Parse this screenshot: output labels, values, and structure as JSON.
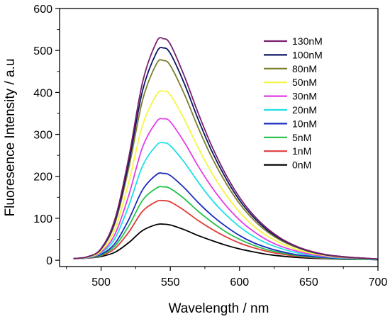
{
  "chart_data": {
    "type": "line",
    "xlabel": "Wavelength / nm",
    "ylabel": "Fluoresence Intensity / a.u",
    "xlim": [
      470,
      700
    ],
    "ylim": [
      -15,
      600
    ],
    "xticks": [
      500,
      550,
      600,
      650,
      700
    ],
    "yticks": [
      0,
      100,
      200,
      300,
      400,
      500,
      600
    ],
    "grid": false,
    "legend": "top-right",
    "x": [
      480,
      490,
      500,
      510,
      520,
      530,
      540,
      545,
      550,
      560,
      570,
      580,
      590,
      600,
      610,
      620,
      630,
      640,
      650,
      660,
      670,
      680,
      690,
      700
    ],
    "series": [
      {
        "name": "130nM",
        "color": "#7a1f6e",
        "values": [
          4,
          8,
          28,
          98,
          245,
          425,
          520,
          528,
          515,
          440,
          352,
          272,
          205,
          150,
          108,
          76,
          52,
          35,
          23,
          15,
          10,
          7,
          5,
          3
        ]
      },
      {
        "name": "100nM",
        "color": "#0b1463",
        "values": [
          4,
          8,
          27,
          93,
          233,
          405,
          495,
          506,
          493,
          422,
          337,
          260,
          196,
          143,
          103,
          72,
          50,
          34,
          22,
          14,
          10,
          7,
          5,
          3
        ]
      },
      {
        "name": "80nM",
        "color": "#7b7d2a",
        "values": [
          4,
          8,
          26,
          88,
          220,
          382,
          468,
          476,
          464,
          397,
          317,
          245,
          185,
          135,
          97,
          68,
          47,
          32,
          21,
          14,
          9,
          6,
          4,
          3
        ]
      },
      {
        "name": "50nM",
        "color": "#f5f542",
        "values": [
          4,
          7,
          22,
          74,
          186,
          322,
          394,
          403,
          394,
          337,
          269,
          208,
          157,
          115,
          82,
          58,
          40,
          27,
          18,
          12,
          8,
          6,
          4,
          3
        ]
      },
      {
        "name": "30nM",
        "color": "#e23ee6",
        "values": [
          4,
          7,
          19,
          62,
          155,
          270,
          330,
          337,
          330,
          282,
          225,
          174,
          131,
          96,
          69,
          48,
          33,
          23,
          15,
          10,
          7,
          5,
          4,
          3
        ]
      },
      {
        "name": "20nM",
        "color": "#1fe0e6",
        "values": [
          4,
          6,
          17,
          52,
          130,
          225,
          274,
          280,
          273,
          234,
          187,
          144,
          109,
          80,
          57,
          40,
          28,
          19,
          13,
          9,
          6,
          4,
          3,
          2
        ]
      },
      {
        "name": "10nM",
        "color": "#1a2bbf",
        "values": [
          4,
          6,
          14,
          40,
          97,
          168,
          204,
          207,
          202,
          173,
          138,
          107,
          81,
          59,
          42,
          30,
          21,
          14,
          10,
          7,
          5,
          4,
          3,
          2
        ]
      },
      {
        "name": "5nM",
        "color": "#22c24a",
        "values": [
          4,
          6,
          12,
          34,
          82,
          143,
          172,
          175,
          171,
          147,
          117,
          91,
          68,
          50,
          36,
          25,
          18,
          12,
          8,
          6,
          4,
          3,
          2,
          2
        ]
      },
      {
        "name": "1nM",
        "color": "#e03a3a",
        "values": [
          4,
          5,
          11,
          28,
          67,
          117,
          140,
          142,
          139,
          119,
          95,
          74,
          56,
          41,
          30,
          21,
          15,
          10,
          7,
          5,
          4,
          3,
          2,
          2
        ]
      },
      {
        "name": "0nM",
        "color": "#000000",
        "values": [
          4,
          5,
          9,
          19,
          42,
          71,
          85,
          86,
          84,
          73,
          59,
          47,
          36,
          27,
          20,
          14,
          10,
          7,
          5,
          4,
          3,
          2,
          2,
          1
        ]
      }
    ]
  }
}
